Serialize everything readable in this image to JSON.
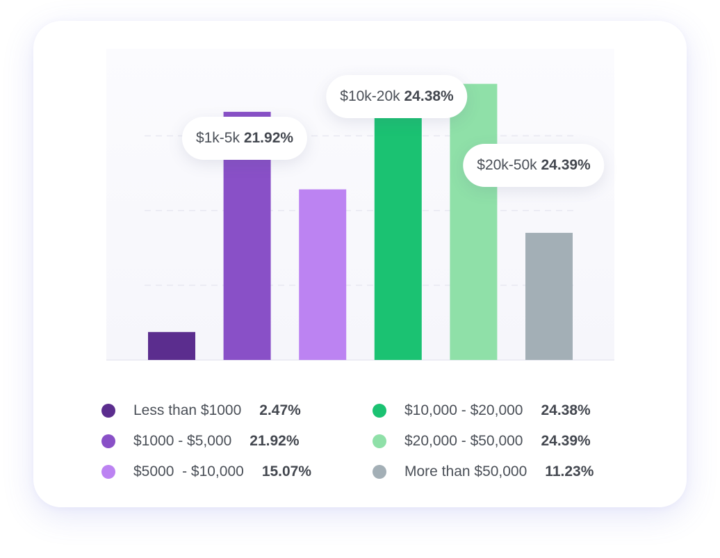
{
  "colors": {
    "dark_purple": "#5b2d8e",
    "purple": "#8950c7",
    "light_purple": "#bc83f2",
    "green": "#1bc272",
    "light_green": "#8fe0a8",
    "gray": "#a3afb6"
  },
  "chart_data": {
    "type": "bar",
    "title": "",
    "xlabel": "",
    "ylabel": "",
    "ylim": [
      0,
      27.5
    ],
    "grid": true,
    "categories": [
      "Less than $1000",
      "$1000 - $5,000",
      "$5000  - $10,000",
      "$10,000 - $20,000",
      "$20,000 - $50,000",
      "More than $50,000"
    ],
    "values": [
      2.47,
      21.92,
      15.07,
      24.38,
      24.39,
      11.23
    ],
    "colors": [
      "#5b2d8e",
      "#8950c7",
      "#bc83f2",
      "#1bc272",
      "#8fe0a8",
      "#a3afb6"
    ],
    "annotations": [
      {
        "label": "$1k-5k",
        "value": "21.92%"
      },
      {
        "label": "$10k-20k",
        "value": "24.38%"
      },
      {
        "label": "$20k-50k",
        "value": "24.39%"
      }
    ],
    "legend": [
      {
        "label": "Less than $1000",
        "value": "2.47%",
        "color": "#5b2d8e"
      },
      {
        "label": "$1000 - $5,000",
        "value": "21.92%",
        "color": "#8950c7"
      },
      {
        "label": "$5000  - $10,000",
        "value": "15.07%",
        "color": "#bc83f2"
      },
      {
        "label": "$10,000 - $20,000",
        "value": "24.38%",
        "color": "#1bc272"
      },
      {
        "label": "$20,000 - $50,000",
        "value": "24.39%",
        "color": "#8fe0a8"
      },
      {
        "label": "More than $50,000",
        "value": "11.23%",
        "color": "#a3afb6"
      }
    ],
    "legend_placement": "bottom"
  }
}
